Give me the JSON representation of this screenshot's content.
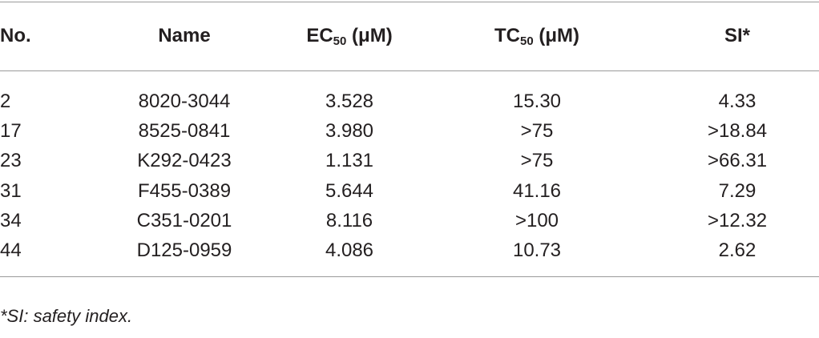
{
  "table": {
    "header": [
      {
        "text": "No."
      },
      {
        "text": "Name"
      },
      {
        "text": "EC",
        "sub": "50",
        "after": " (μM)"
      },
      {
        "text": "TC",
        "sub": "50",
        "after": " (μM)"
      },
      {
        "text": "SI",
        "after": "*"
      }
    ],
    "rows": [
      [
        "2",
        "8020-3044",
        "3.528",
        "15.30",
        "4.33"
      ],
      [
        "17",
        "8525-0841",
        "3.980",
        ">75",
        ">18.84"
      ],
      [
        "23",
        "K292-0423",
        "1.131",
        ">75",
        ">66.31"
      ],
      [
        "31",
        "F455-0389",
        "5.644",
        "41.16",
        "7.29"
      ],
      [
        "34",
        "C351-0201",
        "8.116",
        ">100",
        ">12.32"
      ],
      [
        "44",
        "D125-0959",
        "4.086",
        "10.73",
        "2.62"
      ]
    ],
    "footnote": "*SI: safety index."
  }
}
